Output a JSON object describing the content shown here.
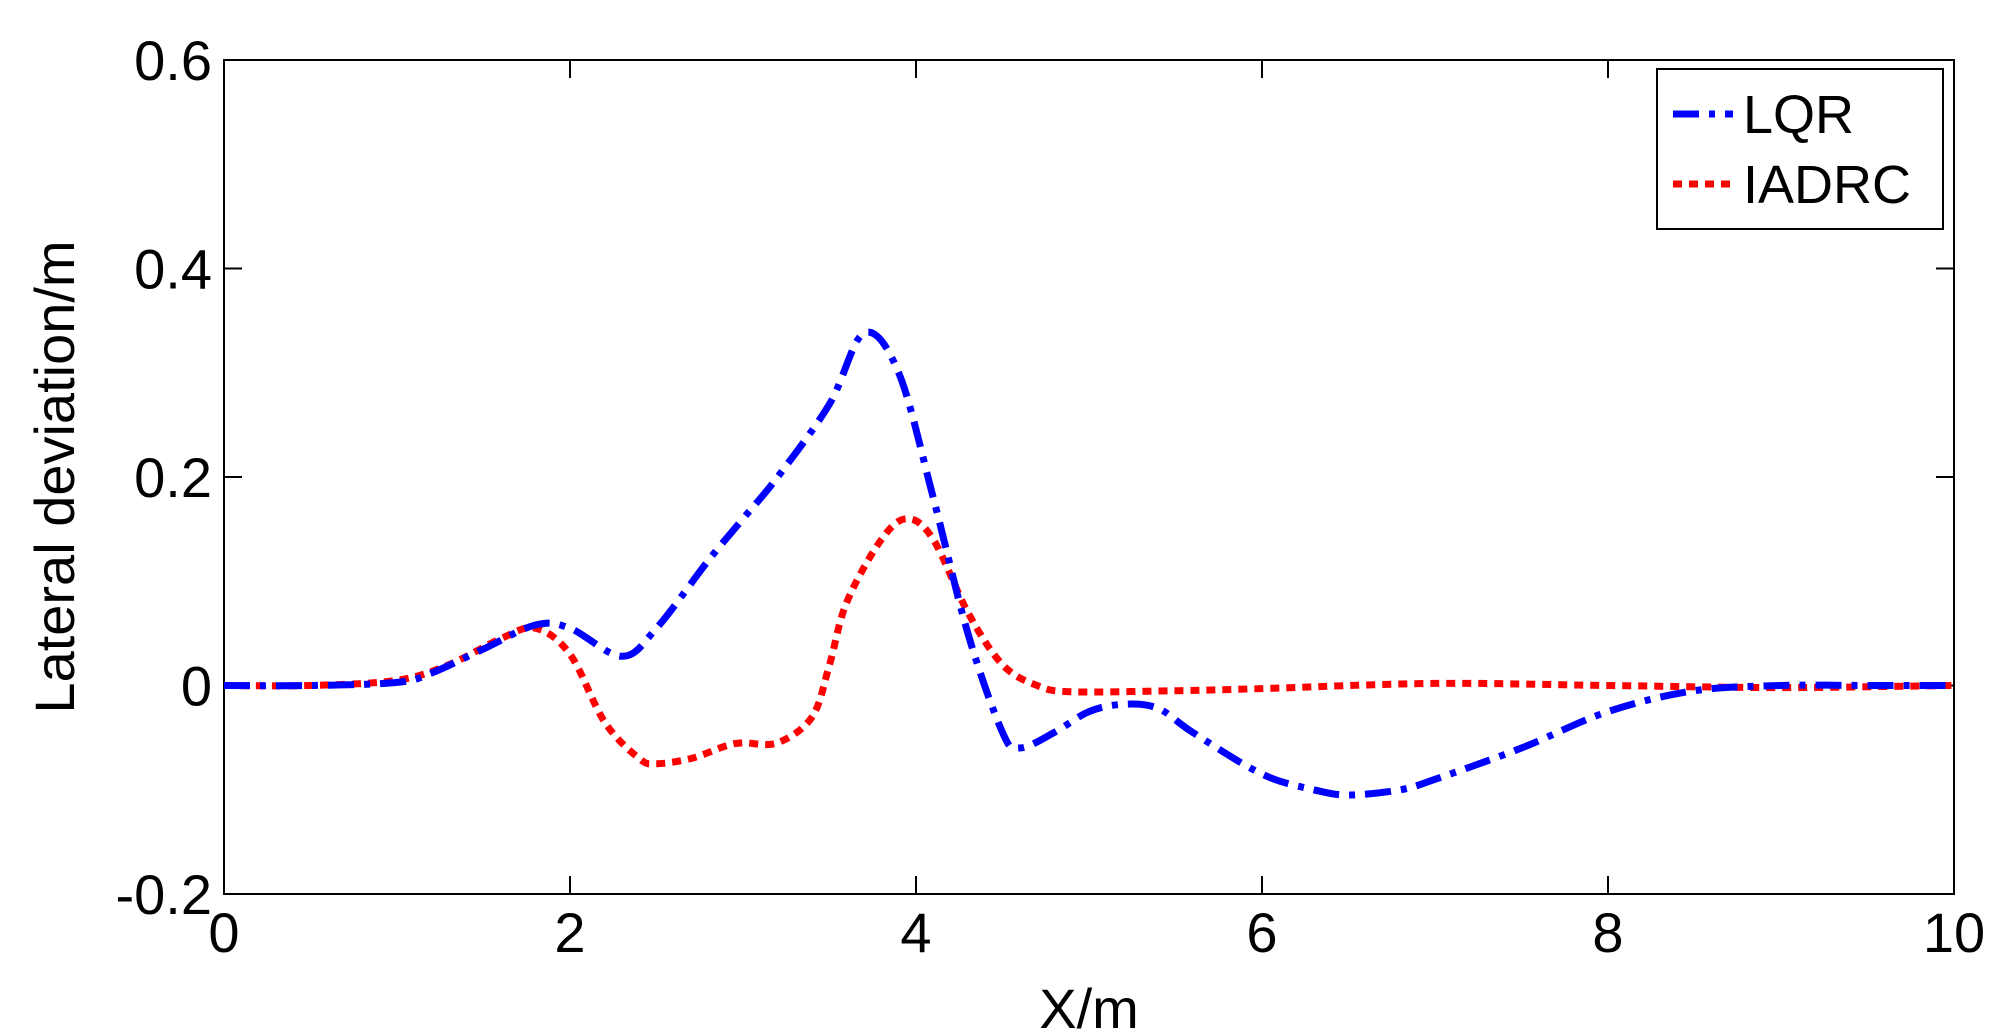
{
  "chart_data": {
    "type": "line",
    "title": "",
    "xlabel": "X/m",
    "ylabel": "Lateral deviation/m",
    "xlim": [
      0,
      10
    ],
    "ylim": [
      -0.2,
      0.6
    ],
    "xticks": [
      "0",
      "2",
      "4",
      "6",
      "8",
      "10"
    ],
    "yticks": [
      "-0.2",
      "0",
      "0.2",
      "0.4",
      "0.6"
    ],
    "xtick_values": [
      0,
      2,
      4,
      6,
      8,
      10
    ],
    "ytick_values": [
      -0.2,
      0,
      0.2,
      0.4,
      0.6
    ],
    "grid": false,
    "legend_position": "top-right",
    "series": [
      {
        "name": "LQR",
        "color": "#0000ff",
        "style": "dash-dot",
        "x": [
          0,
          0.5,
          1.0,
          1.2,
          1.5,
          1.8,
          2.0,
          2.3,
          2.5,
          2.8,
          3.0,
          3.2,
          3.5,
          3.7,
          3.9,
          4.1,
          4.3,
          4.5,
          4.6,
          4.8,
          5.0,
          5.2,
          5.4,
          5.6,
          6.0,
          6.3,
          6.5,
          6.8,
          7.0,
          7.5,
          8.0,
          8.5,
          9.0,
          9.5,
          10.0
        ],
        "values": [
          0,
          0,
          0.003,
          0.012,
          0.035,
          0.058,
          0.055,
          0.028,
          0.055,
          0.12,
          0.16,
          0.2,
          0.27,
          0.338,
          0.3,
          0.18,
          0.05,
          -0.045,
          -0.06,
          -0.045,
          -0.025,
          -0.018,
          -0.022,
          -0.045,
          -0.085,
          -0.1,
          -0.105,
          -0.1,
          -0.09,
          -0.06,
          -0.025,
          -0.005,
          0,
          0,
          0
        ]
      },
      {
        "name": "IADRC",
        "color": "#ff0000",
        "style": "dotted",
        "x": [
          0,
          0.5,
          1.0,
          1.3,
          1.6,
          1.8,
          2.0,
          2.2,
          2.4,
          2.5,
          2.7,
          2.9,
          3.0,
          3.2,
          3.4,
          3.5,
          3.6,
          3.8,
          3.95,
          4.1,
          4.3,
          4.5,
          4.7,
          4.9,
          5.5,
          6.0,
          7.0,
          8.0,
          9.0,
          10.0
        ],
        "values": [
          0,
          0,
          0.005,
          0.02,
          0.045,
          0.055,
          0.03,
          -0.035,
          -0.07,
          -0.075,
          -0.07,
          -0.058,
          -0.055,
          -0.055,
          -0.03,
          0.02,
          0.08,
          0.14,
          0.16,
          0.14,
          0.07,
          0.02,
          0.0,
          -0.006,
          -0.005,
          -0.003,
          0.002,
          0.0,
          -0.002,
          0
        ]
      }
    ]
  }
}
